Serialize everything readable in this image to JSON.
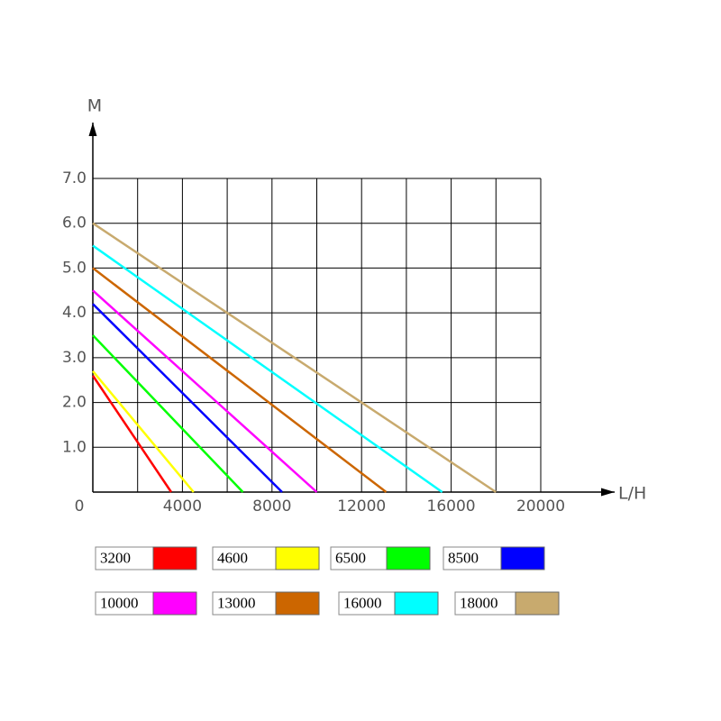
{
  "chart_data": {
    "type": "line",
    "y_label": "M",
    "x_label": "L/H",
    "xlim": [
      0,
      20000
    ],
    "ylim": [
      0,
      7
    ],
    "xticks": [
      0,
      4000,
      8000,
      12000,
      16000,
      20000
    ],
    "xgrid": [
      0,
      2000,
      4000,
      6000,
      8000,
      10000,
      12000,
      14000,
      16000,
      18000,
      20000
    ],
    "yticks": [
      {
        "value": 1,
        "label": "1.0"
      },
      {
        "value": 2,
        "label": "2.0"
      },
      {
        "value": 3,
        "label": "3.0"
      },
      {
        "value": 4,
        "label": "4.0"
      },
      {
        "value": 5,
        "label": "5.0"
      },
      {
        "value": 6,
        "label": "6.0"
      },
      {
        "value": 7,
        "label": "7.0"
      }
    ],
    "grid": true,
    "series": [
      {
        "name": "3200",
        "color": "#ff0000",
        "x": [
          0,
          3500
        ],
        "values": [
          2.6,
          0
        ]
      },
      {
        "name": "4600",
        "color": "#ffff00",
        "x": [
          0,
          4500
        ],
        "values": [
          2.7,
          0
        ]
      },
      {
        "name": "6500",
        "color": "#00ff00",
        "x": [
          0,
          6700
        ],
        "values": [
          3.5,
          0
        ]
      },
      {
        "name": "8500",
        "color": "#0000ff",
        "x": [
          0,
          8450
        ],
        "values": [
          4.2,
          0
        ]
      },
      {
        "name": "10000",
        "color": "#ff00ff",
        "x": [
          0,
          10000
        ],
        "values": [
          4.5,
          0
        ]
      },
      {
        "name": "13000",
        "color": "#cc6600",
        "x": [
          0,
          13100
        ],
        "values": [
          5.0,
          0
        ]
      },
      {
        "name": "16000",
        "color": "#00ffff",
        "x": [
          0,
          15600
        ],
        "values": [
          5.5,
          0
        ]
      },
      {
        "name": "18000",
        "color": "#c8aa6e",
        "x": [
          0,
          18000
        ],
        "values": [
          6.0,
          0
        ]
      }
    ]
  }
}
